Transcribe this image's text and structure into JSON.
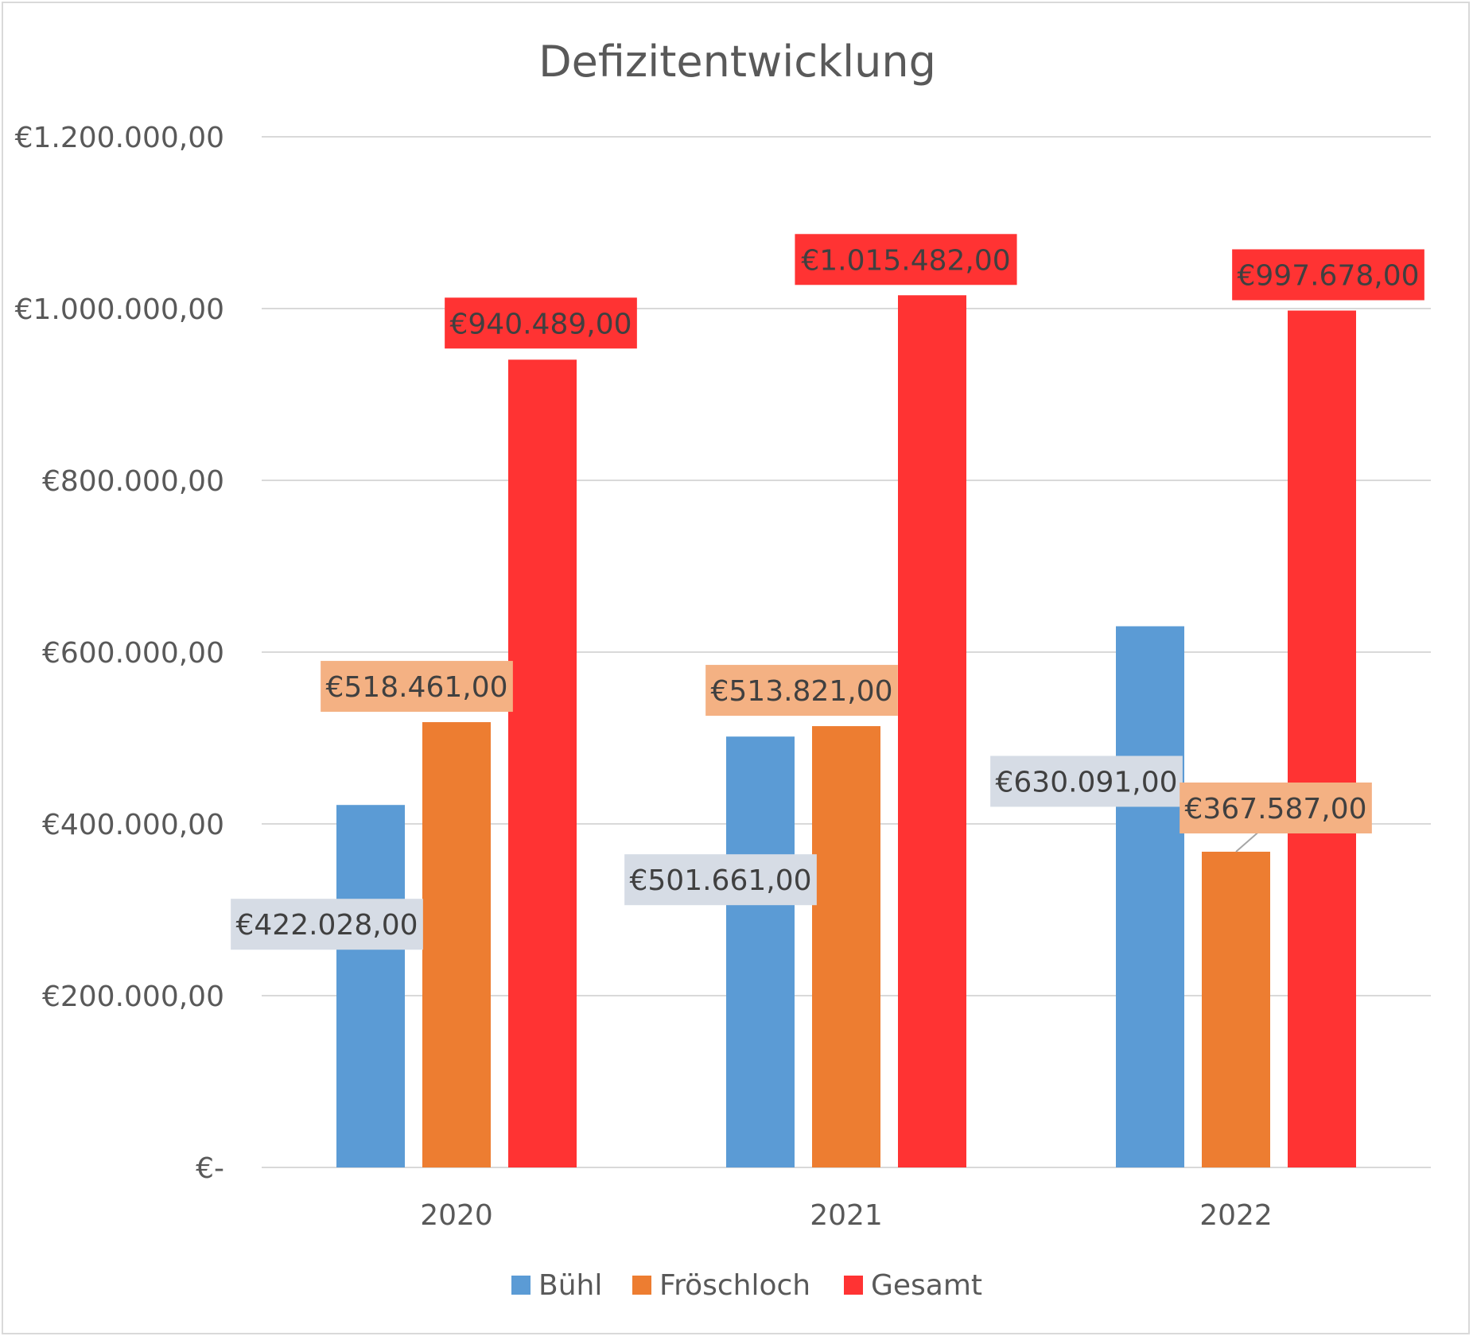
{
  "chart_data": {
    "type": "bar",
    "title": "Defizitentwicklung",
    "xlabel": "",
    "ylabel": "",
    "categories": [
      "2020",
      "2021",
      "2022"
    ],
    "ylim": [
      0,
      1200000
    ],
    "yticks": [
      0,
      200000,
      400000,
      600000,
      800000,
      1000000,
      1200000
    ],
    "ytick_labels": [
      "€-",
      "€200.000,00",
      "€400.000,00",
      "€600.000,00",
      "€800.000,00",
      "€1.000.000,00",
      "€1.200.000,00"
    ],
    "grid": true,
    "legend_position": "bottom",
    "series": [
      {
        "name": "Bühl",
        "color": "#5b9bd5",
        "label_bg": "#d6dce5",
        "values": [
          422028,
          501661,
          630091
        ],
        "labels": [
          "€422.028,00",
          "€501.661,00",
          "€630.091,00"
        ]
      },
      {
        "name": "Fröschloch",
        "color": "#ed7d31",
        "label_bg": "#f4b183",
        "values": [
          518461,
          513821,
          367587
        ],
        "labels": [
          "€518.461,00",
          "€513.821,00",
          "€367.587,00"
        ]
      },
      {
        "name": "Gesamt",
        "color": "#ff3333",
        "label_bg": "#ff3333",
        "values": [
          940489,
          1015482,
          997678
        ],
        "labels": [
          "€940.489,00",
          "€1.015.482,00",
          "€997.678,00"
        ]
      }
    ]
  }
}
